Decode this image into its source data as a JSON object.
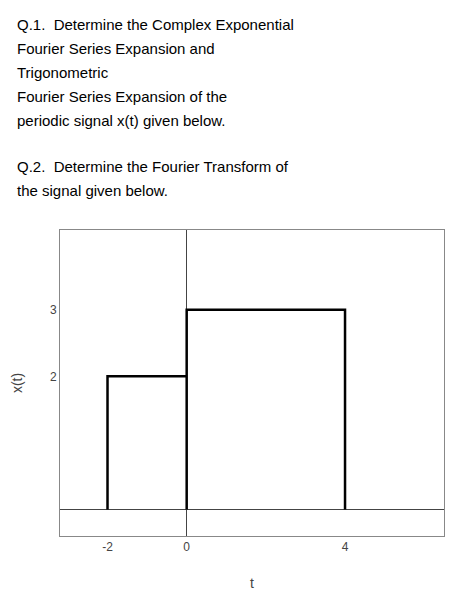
{
  "chart_data": {
    "type": "line",
    "annotations": [
      [
        "Q.1.  Determine the Complex Exponential",
        "Fourier Series Expansion and",
        "Trigonometric",
        "Fourier Series Expansion of the",
        "periodic signal x(t) given below."
      ],
      [
        "Q.2.  Determine the Fourier Transform of",
        "the signal given below."
      ]
    ],
    "x_label": "t",
    "y_label": "x(t)",
    "x": [
      -2,
      -2,
      0,
      0,
      0,
      4,
      4
    ],
    "values": [
      0,
      2,
      2,
      0,
      3,
      3,
      0
    ],
    "color": "#000000",
    "xlim": [
      -3.2,
      6.5
    ],
    "ylim": [
      -0.4,
      4.2
    ],
    "xticks": [
      -2,
      0,
      4
    ],
    "yticks": [
      2,
      3
    ],
    "grid": false
  }
}
